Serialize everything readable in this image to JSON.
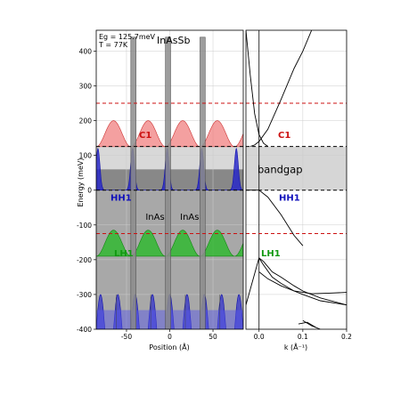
{
  "chart_data": [
    {
      "type": "line",
      "panel": "left",
      "subtype": "superlattice-band-profile",
      "title": "InAsSb",
      "annotation_lines": [
        "Eg = 125.7meV",
        "T = 77K"
      ],
      "xlabel": "Position (Å)",
      "ylabel": "Energy (meV)",
      "xlim": [
        -85,
        85
      ],
      "ylim": [
        -400,
        460
      ],
      "xticks": [
        -50,
        0,
        50
      ],
      "yticks": [
        -400,
        -300,
        -200,
        -100,
        0,
        100,
        200,
        300,
        400
      ],
      "grid": true,
      "barrier_top": 440,
      "well_bottom": -400,
      "barrier_positions": [
        -45,
        -5,
        35
      ],
      "barrier_width": 6,
      "band_levels": [
        {
          "name": "C1",
          "energy": 125.7,
          "color": "#cc1111"
        },
        {
          "name": "HH1",
          "energy": 0,
          "color": "#1111bb"
        },
        {
          "name": "LH1",
          "energy": -125,
          "color": "#119911"
        }
      ],
      "dashed_lines": [
        {
          "energy": 250,
          "color": "#cc1111"
        },
        {
          "energy": 125.7,
          "color": "#000000"
        },
        {
          "energy": 0,
          "color": "#000000"
        },
        {
          "energy": -125,
          "color": "#cc1111"
        }
      ],
      "material_labels": [
        {
          "text": "InAs",
          "x": -28,
          "y": -75
        },
        {
          "text": "InAs",
          "x": 12,
          "y": -75
        }
      ],
      "c1_band": {
        "min": 125,
        "max": 200,
        "period": 40,
        "phase": 0,
        "color": "#f08080"
      },
      "hh1_band": {
        "min": 0,
        "max": 120,
        "period": 40,
        "phase": 20,
        "color": "#2222cc"
      },
      "lh1_band": {
        "min": -190,
        "max": -115,
        "period": 40,
        "phase": 0,
        "color": "#22bb22"
      },
      "deep_band": {
        "min": -400,
        "max": -300,
        "period": 20,
        "phase": 0,
        "color": "#3333cc"
      },
      "light_fill": {
        "min": 60,
        "max": 125,
        "color": "#d8d8d8"
      },
      "dark_fill": {
        "min": 0,
        "max": 60,
        "color": "#888888"
      }
    },
    {
      "type": "line",
      "panel": "right",
      "subtype": "band-dispersion",
      "xlabel": "k (Å⁻¹)",
      "xlim": [
        -0.03,
        0.2
      ],
      "ylim": [
        -400,
        460
      ],
      "xticks": [
        0.0,
        0.1,
        0.2
      ],
      "grid": true,
      "bandgap_label": "bandgap",
      "bandgap_range": [
        0,
        125.7
      ],
      "labels": [
        {
          "text": "C1",
          "color": "#cc1111"
        },
        {
          "text": "HH1",
          "color": "#1111bb"
        },
        {
          "text": "LH1",
          "color": "#119911"
        }
      ],
      "dashed_lines": [
        {
          "energy": 250,
          "color": "#cc1111"
        },
        {
          "energy": 125.7,
          "color": "#000000"
        },
        {
          "energy": 0,
          "color": "#000000"
        },
        {
          "energy": -125,
          "color": "#cc1111"
        }
      ],
      "series": [
        {
          "points": [
            [
              -0.03,
              460
            ],
            [
              -0.02,
              330
            ],
            [
              -0.01,
              220
            ],
            [
              0.0,
              160
            ],
            [
              0.01,
              135
            ],
            [
              0.02,
              126
            ]
          ]
        },
        {
          "points": [
            [
              -0.02,
              126
            ],
            [
              -0.01,
              130
            ],
            [
              0.0,
              140
            ],
            [
              0.02,
              175
            ],
            [
              0.05,
              260
            ],
            [
              0.08,
              350
            ],
            [
              0.1,
              400
            ],
            [
              0.12,
              460
            ]
          ]
        },
        {
          "points": [
            [
              -0.03,
              0
            ],
            [
              0.0,
              0
            ],
            [
              0.02,
              -20
            ],
            [
              0.05,
              -70
            ],
            [
              0.08,
              -130
            ],
            [
              0.1,
              -160
            ]
          ]
        },
        {
          "points": [
            [
              -0.03,
              -330
            ],
            [
              -0.01,
              -240
            ],
            [
              0.0,
              -195
            ],
            [
              0.01,
              -205
            ],
            [
              0.03,
              -235
            ],
            [
              0.05,
              -250
            ],
            [
              0.08,
              -275
            ],
            [
              0.1,
              -290
            ],
            [
              0.14,
              -310
            ],
            [
              0.2,
              -330
            ]
          ]
        },
        {
          "points": [
            [
              0.0,
              -195
            ],
            [
              0.01,
              -215
            ],
            [
              0.03,
              -250
            ],
            [
              0.05,
              -268
            ],
            [
              0.08,
              -290
            ],
            [
              0.1,
              -300
            ],
            [
              0.14,
              -318
            ],
            [
              0.2,
              -330
            ]
          ]
        },
        {
          "points": [
            [
              0.0,
              -235
            ],
            [
              0.02,
              -255
            ],
            [
              0.05,
              -275
            ],
            [
              0.08,
              -290
            ],
            [
              0.12,
              -298
            ],
            [
              0.16,
              -296
            ],
            [
              0.2,
              -294
            ]
          ]
        },
        {
          "points": [
            [
              0.1,
              -375
            ],
            [
              0.12,
              -390
            ],
            [
              0.14,
              -400
            ]
          ]
        },
        {
          "points": [
            [
              0.09,
              -385
            ],
            [
              0.11,
              -380
            ],
            [
              0.13,
              -395
            ]
          ]
        }
      ]
    }
  ]
}
